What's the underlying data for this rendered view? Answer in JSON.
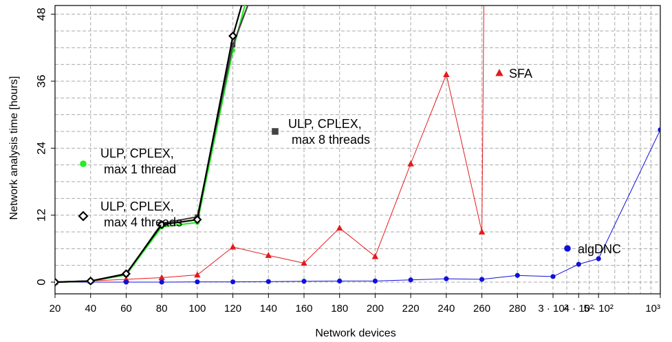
{
  "chart_data": {
    "type": "line",
    "xlabel": "Network devices",
    "ylabel": "Network analysis time [hours]",
    "ylim": [
      -4,
      50
    ],
    "y_ticks": [
      0,
      12,
      24,
      36,
      48
    ],
    "x_linear_ticks": [
      "20",
      "40",
      "60",
      "80",
      "100",
      "120",
      "140",
      "160",
      "180",
      "200",
      "220",
      "240",
      "260",
      "280"
    ],
    "x_log_ticks": [
      {
        "value": 300,
        "label": "3 · 10²"
      },
      {
        "value": 400,
        "label": "4 · 10²"
      },
      {
        "value": 500,
        "label": "5 · 10²"
      },
      {
        "value": 1000,
        "label": "10³"
      }
    ],
    "x_axis_note": "linear scale 20–280 devices, log scale 300–1000 devices",
    "grid": true,
    "series": [
      {
        "name": "SFA",
        "color": "#e41a1c",
        "marker": "triangle",
        "label_lines": [
          "SFA"
        ],
        "x": [
          20,
          40,
          60,
          80,
          100,
          120,
          140,
          160,
          180,
          200,
          220,
          240,
          260
        ],
        "y": [
          0.0,
          0.2,
          0.5,
          0.8,
          1.3,
          6.3,
          4.8,
          3.4,
          9.7,
          4.6,
          21.2,
          37.2,
          9.0
        ],
        "spike_to_top_after": 260
      },
      {
        "name": "ULP, CPLEX, max 1 thread",
        "color": "#22ee22",
        "marker": "circle",
        "label_lines": [
          "ULP, CPLEX,",
          "max 1 thread"
        ],
        "x": [
          20,
          40,
          60,
          80,
          100,
          120,
          140
        ],
        "y": [
          0.0,
          0.2,
          1.3,
          9.9,
          10.7,
          41.5,
          65.5
        ],
        "continues_to_top": true
      },
      {
        "name": "ULP, CPLEX, max 4 threads",
        "color": "#000000",
        "marker": "diamond",
        "label_lines": [
          "ULP, CPLEX,",
          "max 4 threads"
        ],
        "x": [
          20,
          40,
          60,
          80,
          100,
          120,
          140
        ],
        "y": [
          0.0,
          0.2,
          1.5,
          10.3,
          11.2,
          44.1,
          66.5
        ],
        "continues_to_top": true
      },
      {
        "name": "ULP, CPLEX, max 8 threads",
        "color": "#444444",
        "marker": "square",
        "label_lines": [
          "ULP, CPLEX,",
          "max 8 threads"
        ],
        "x": [
          20,
          40,
          60,
          80,
          100,
          120,
          140
        ],
        "y": [
          0.0,
          0.2,
          1.4,
          10.5,
          11.7,
          42.5,
          59.4
        ],
        "continues_to_top": true
      },
      {
        "name": "algDNC",
        "color": "#1010dd",
        "marker": "circle",
        "label_lines": [
          "algDNC"
        ],
        "x": [
          20,
          40,
          60,
          80,
          100,
          120,
          140,
          160,
          180,
          200,
          220,
          240,
          260,
          280,
          300,
          400,
          500,
          1000
        ],
        "y": [
          0.0,
          0.0,
          0.0,
          0.0,
          0.05,
          0.05,
          0.1,
          0.15,
          0.2,
          0.2,
          0.4,
          0.6,
          0.5,
          1.2,
          1.0,
          3.2,
          4.2,
          27.3
        ]
      }
    ]
  }
}
